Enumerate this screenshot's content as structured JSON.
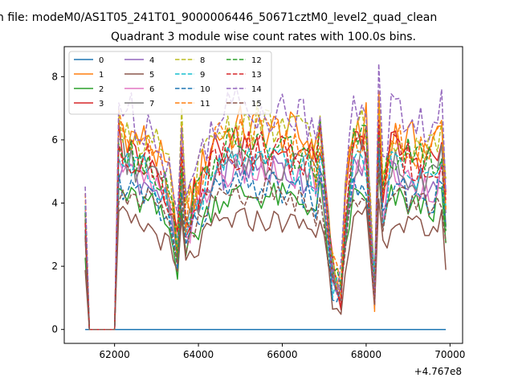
{
  "chart_data": {
    "type": "line",
    "suptitle": "n file: modeM0/AS1T05_241T01_9000006446_50671cztM0_level2_quad_clean",
    "title": "Quadrant 3 module wise count rates with 100.0s bins.",
    "xlabel": "",
    "ylabel": "",
    "x_offset_text": "+4.767e8",
    "x_offset": 476700000,
    "xlim": [
      60800,
      70300
    ],
    "ylim": [
      -0.44,
      8.95
    ],
    "xticks": [
      62000,
      64000,
      66000,
      68000,
      70000
    ],
    "xtick_labels": [
      "62000",
      "64000",
      "66000",
      "68000",
      "70000"
    ],
    "yticks": [
      0,
      2,
      4,
      6,
      8
    ],
    "ytick_labels": [
      "0",
      "2",
      "4",
      "6",
      "8"
    ],
    "grid": false,
    "legend_position": "upper-left",
    "legend_ncol": 4,
    "x_start": 61300,
    "x_step": 100,
    "n_points": 87,
    "zero_segment": [
      1,
      7
    ],
    "feature_points": [
      {
        "x": 61300,
        "factor": 0.62
      },
      {
        "x": 62100,
        "factor": 1.0
      },
      {
        "x": 62400,
        "factor": 0.93
      },
      {
        "x": 62900,
        "factor": 0.88
      },
      {
        "x": 63300,
        "factor": 0.72
      },
      {
        "x": 63500,
        "factor": 0.45
      },
      {
        "x": 63600,
        "factor": 0.95
      },
      {
        "x": 63700,
        "factor": 0.55
      },
      {
        "x": 63800,
        "factor": 0.62
      },
      {
        "x": 64400,
        "factor": 0.93
      },
      {
        "x": 65000,
        "factor": 0.97
      },
      {
        "x": 66000,
        "factor": 0.95
      },
      {
        "x": 66700,
        "factor": 0.9
      },
      {
        "x": 66800,
        "factor": 0.82
      },
      {
        "x": 66900,
        "factor": 1.0
      },
      {
        "x": 67000,
        "factor": 0.8
      },
      {
        "x": 67200,
        "factor": 0.28
      },
      {
        "x": 67400,
        "factor": 0.2
      },
      {
        "x": 67500,
        "factor": 0.6
      },
      {
        "x": 67700,
        "factor": 0.95
      },
      {
        "x": 68000,
        "factor": 0.98
      },
      {
        "x": 68100,
        "factor": 0.55
      },
      {
        "x": 68200,
        "factor": 0.2
      },
      {
        "x": 68300,
        "factor": 1.12
      },
      {
        "x": 68400,
        "factor": 0.7
      },
      {
        "x": 68600,
        "factor": 0.95
      },
      {
        "x": 69000,
        "factor": 0.9
      },
      {
        "x": 69600,
        "factor": 0.88
      },
      {
        "x": 69800,
        "factor": 0.95
      },
      {
        "x": 69900,
        "factor": 0.62
      }
    ],
    "series": [
      {
        "name": "0",
        "color": "#1f77b4",
        "dash": "solid",
        "base": 0.0
      },
      {
        "name": "1",
        "color": "#ff7f0e",
        "dash": "solid",
        "base": 6.6
      },
      {
        "name": "2",
        "color": "#2ca02c",
        "dash": "solid",
        "base": 4.4
      },
      {
        "name": "3",
        "color": "#d62728",
        "dash": "solid",
        "base": 6.1
      },
      {
        "name": "4",
        "color": "#9467bd",
        "dash": "solid",
        "base": 5.3
      },
      {
        "name": "5",
        "color": "#8c564b",
        "dash": "solid",
        "base": 3.6
      },
      {
        "name": "6",
        "color": "#e377c2",
        "dash": "solid",
        "base": 5.2
      },
      {
        "name": "7",
        "color": "#7f7f7f",
        "dash": "solid",
        "base": 5.6
      },
      {
        "name": "8",
        "color": "#bcbd22",
        "dash": "dashed",
        "base": 6.7
      },
      {
        "name": "9",
        "color": "#17becf",
        "dash": "dashed",
        "base": 5.5
      },
      {
        "name": "10",
        "color": "#1f77b4",
        "dash": "dashed",
        "base": 4.7
      },
      {
        "name": "11",
        "color": "#ff7f0e",
        "dash": "dashed",
        "base": 6.3
      },
      {
        "name": "12",
        "color": "#2ca02c",
        "dash": "dashed",
        "base": 6.0
      },
      {
        "name": "13",
        "color": "#d62728",
        "dash": "dashed",
        "base": 5.9
      },
      {
        "name": "14",
        "color": "#9467bd",
        "dash": "dashed",
        "base": 7.3
      },
      {
        "name": "15",
        "color": "#8c564b",
        "dash": "dashed",
        "base": 4.5
      }
    ]
  }
}
